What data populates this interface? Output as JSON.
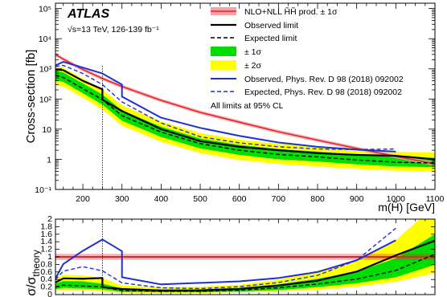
{
  "chart_data": [
    {
      "type": "line",
      "panel": "main",
      "x_scale": "linear",
      "y_scale": "log",
      "xlim": [
        130,
        1100
      ],
      "ylim": [
        0.1,
        150000
      ],
      "xlabel": "m(H̃) [GeV]",
      "ylabel": "Cross-section [fb]",
      "x_ticks": [
        200,
        300,
        400,
        500,
        600,
        700,
        800,
        900,
        1000,
        1100
      ],
      "x_tick_labels": [
        "200",
        "300",
        "400",
        "500",
        "600",
        "700",
        "800",
        "900",
        "1000",
        "1100"
      ],
      "y_ticks": [
        0.1,
        1,
        10,
        100,
        1000,
        10000,
        100000
      ],
      "y_tick_labels": [
        "10⁻¹",
        "1",
        "10",
        "10²",
        "10³",
        "10⁴",
        "10⁵"
      ],
      "experiment_label": "ATLAS",
      "energy_label": "√s=13 TeV, 126-139 fb⁻¹",
      "reference_line_x": 250,
      "legend": [
        {
          "key": "theory",
          "label": "NLO+NLL H̃H̃ prod. ± 1σ",
          "style": "red-band"
        },
        {
          "key": "observed",
          "label": "Observed limit",
          "style": "black-solid"
        },
        {
          "key": "expected",
          "label": "Expected limit",
          "style": "black-dashed"
        },
        {
          "key": "band1",
          "label": "± 1σ",
          "style": "green-box"
        },
        {
          "key": "band2",
          "label": "± 2σ",
          "style": "yellow-box"
        },
        {
          "key": "prev_obs",
          "label": "Observed, Phys. Rev. D 98 (2018) 092002",
          "style": "blue-solid"
        },
        {
          "key": "prev_exp",
          "label": "Expected, Phys. Rev. D 98 (2018) 092002",
          "style": "blue-dashed"
        }
      ],
      "note": "All limits at 95% CL",
      "legend_position": "top-right",
      "series": [
        {
          "key": "theory",
          "color": "#e8232b",
          "x": [
            130,
            150,
            175,
            200,
            250,
            300,
            400,
            500,
            600,
            700,
            800,
            900,
            1000,
            1100
          ],
          "y": [
            3000,
            2100,
            1400,
            950,
            480,
            260,
            90,
            36,
            17,
            8.2,
            4.3,
            2.3,
            1.25,
            0.7
          ]
        },
        {
          "key": "observed",
          "color": "#000000",
          "x": [
            130,
            150,
            200,
            250,
            250,
            300,
            400,
            500,
            600,
            700,
            800,
            900,
            1000,
            1100
          ],
          "y": [
            950,
            900,
            400,
            210,
            95,
            40,
            10,
            4,
            2.6,
            2,
            1.6,
            1.4,
            1.3,
            1.0
          ]
        },
        {
          "key": "expected",
          "color": "#000000",
          "x": [
            130,
            150,
            200,
            250,
            300,
            400,
            500,
            600,
            700,
            800,
            900,
            1000,
            1100
          ],
          "y": [
            600,
            520,
            220,
            95,
            28,
            8,
            3.3,
            2.0,
            1.45,
            1.2,
            0.95,
            0.8,
            0.75
          ]
        },
        {
          "key": "prev_obs",
          "color": "#1f2fd8",
          "x": [
            130,
            150,
            200,
            250,
            300,
            300,
            400,
            500,
            600,
            700,
            800,
            900,
            1000
          ],
          "y": [
            1300,
            1700,
            1100,
            700,
            300,
            120,
            24,
            11,
            6,
            3.6,
            2.6,
            2.1,
            1.8
          ]
        },
        {
          "key": "prev_exp",
          "color": "#1f2fd8",
          "x": [
            130,
            150,
            200,
            250,
            300,
            400,
            500,
            600,
            700,
            800,
            900,
            1000
          ],
          "y": [
            1200,
            1300,
            700,
            300,
            80,
            16,
            5.6,
            3.5,
            2.6,
            2.2,
            2.1,
            2.2
          ]
        }
      ],
      "bands": [
        {
          "key": "band2",
          "color": "#ffff00",
          "x": [
            130,
            150,
            200,
            250,
            300,
            400,
            500,
            600,
            700,
            800,
            900,
            1000,
            1100
          ],
          "lo": [
            300,
            260,
            110,
            45,
            13,
            3.8,
            1.6,
            0.95,
            0.7,
            0.58,
            0.48,
            0.42,
            0.4
          ],
          "hi": [
            1300,
            1100,
            480,
            210,
            62,
            18,
            7.4,
            4.5,
            3.3,
            2.7,
            2.1,
            1.8,
            1.65
          ]
        },
        {
          "key": "band1",
          "color": "#00dd00",
          "x": [
            130,
            150,
            200,
            250,
            300,
            400,
            500,
            600,
            700,
            800,
            900,
            1000,
            1100
          ],
          "lo": [
            420,
            370,
            155,
            65,
            19,
            5.5,
            2.3,
            1.4,
            1.0,
            0.84,
            0.68,
            0.58,
            0.55
          ],
          "hi": [
            880,
            760,
            330,
            140,
            42,
            12,
            4.9,
            3.0,
            2.2,
            1.8,
            1.4,
            1.2,
            1.12
          ]
        }
      ]
    },
    {
      "type": "line",
      "panel": "ratio",
      "x_scale": "linear",
      "y_scale": "linear",
      "xlim": [
        130,
        1100
      ],
      "ylim": [
        0,
        2
      ],
      "ylabel": "σ/σ_theory",
      "ylabel_main": "σ/σ",
      "ylabel_sub": "theory",
      "y_ticks": [
        0,
        0.2,
        0.4,
        0.6,
        0.8,
        1,
        1.2,
        1.4,
        1.6,
        1.8,
        2
      ],
      "y_tick_labels": [
        "0",
        "0.2",
        "0.4",
        "0.6",
        "0.8",
        "1",
        "1.2",
        "1.4",
        "1.6",
        "1.8",
        "2"
      ],
      "reference_line_x": 250,
      "theory_line": 1,
      "theory_band": [
        0.92,
        1.08
      ],
      "series": [
        {
          "key": "observed",
          "color": "#000000",
          "x": [
            130,
            150,
            200,
            250,
            250,
            300,
            400,
            500,
            600,
            700,
            800,
            900,
            1000,
            1100
          ],
          "y": [
            0.32,
            0.43,
            0.42,
            0.44,
            0.2,
            0.15,
            0.11,
            0.11,
            0.15,
            0.24,
            0.37,
            0.61,
            1.04,
            1.43
          ]
        },
        {
          "key": "expected",
          "color": "#000000",
          "x": [
            130,
            150,
            200,
            250,
            300,
            400,
            500,
            600,
            700,
            800,
            900,
            1000,
            1100
          ],
          "y": [
            0.2,
            0.25,
            0.23,
            0.2,
            0.11,
            0.09,
            0.09,
            0.12,
            0.18,
            0.28,
            0.41,
            0.64,
            1.07
          ]
        },
        {
          "key": "prev_obs",
          "color": "#1f2fd8",
          "x": [
            130,
            150,
            200,
            250,
            300,
            300,
            400,
            500,
            600,
            700,
            800,
            900,
            1000
          ],
          "y": [
            0.43,
            0.81,
            1.16,
            1.46,
            1.15,
            0.46,
            0.27,
            0.31,
            0.35,
            0.44,
            0.6,
            0.91,
            1.44
          ]
        },
        {
          "key": "prev_exp",
          "color": "#1f2fd8",
          "x": [
            130,
            150,
            200,
            250,
            300,
            400,
            500,
            600,
            700,
            800,
            900,
            1000
          ],
          "y": [
            0.4,
            0.62,
            0.74,
            0.63,
            0.31,
            0.18,
            0.16,
            0.21,
            0.32,
            0.51,
            0.91,
            1.76
          ]
        }
      ],
      "bands": [
        {
          "key": "band2",
          "color": "#ffff00",
          "x": [
            130,
            150,
            200,
            250,
            300,
            400,
            500,
            600,
            700,
            800,
            900,
            1000,
            1100
          ],
          "lo": [
            0.1,
            0.12,
            0.12,
            0.09,
            0.05,
            0.04,
            0.04,
            0.06,
            0.09,
            0.13,
            0.21,
            0.34,
            0.57
          ],
          "hi": [
            0.43,
            0.52,
            0.51,
            0.44,
            0.24,
            0.2,
            0.21,
            0.26,
            0.4,
            0.63,
            0.91,
            1.44,
            2.36
          ]
        },
        {
          "key": "band1",
          "color": "#00dd00",
          "x": [
            130,
            150,
            200,
            250,
            300,
            400,
            500,
            600,
            700,
            800,
            900,
            1000,
            1100
          ],
          "lo": [
            0.14,
            0.18,
            0.16,
            0.14,
            0.07,
            0.06,
            0.06,
            0.08,
            0.12,
            0.2,
            0.3,
            0.46,
            0.79
          ],
          "hi": [
            0.29,
            0.36,
            0.35,
            0.29,
            0.16,
            0.13,
            0.14,
            0.18,
            0.27,
            0.42,
            0.61,
            0.96,
            1.6
          ]
        }
      ]
    }
  ]
}
